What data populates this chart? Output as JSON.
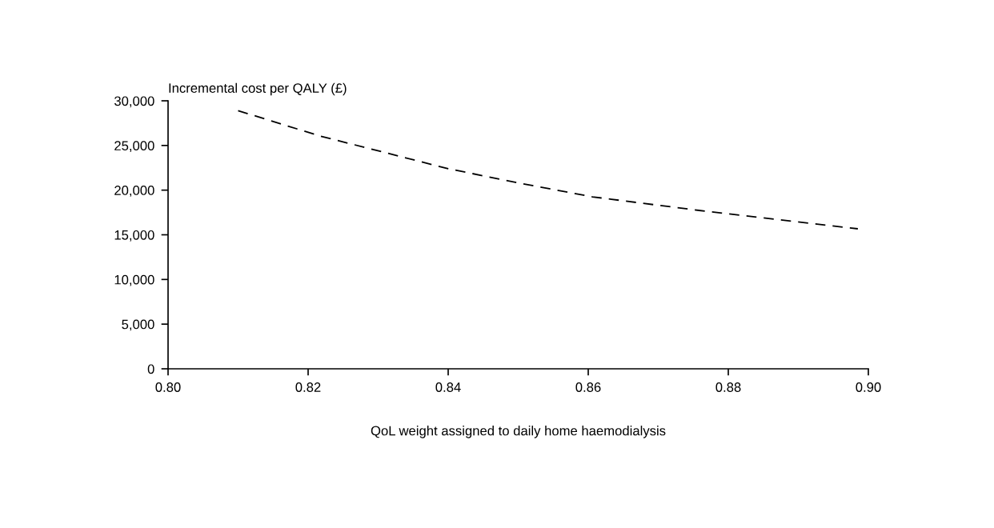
{
  "chart_data": {
    "type": "line",
    "xlabel": "QoL weight assigned to daily home haemodialysis",
    "ylabel": "Incremental cost per QALY (£)",
    "x": [
      0.81,
      0.8217,
      0.84,
      0.8502,
      0.8606,
      0.8758,
      0.8985
    ],
    "series": [
      {
        "color": "#000000",
        "values": [
          28900,
          26060,
          22400,
          20780,
          19250,
          17730,
          15670
        ]
      }
    ],
    "xlim": [
      0.8,
      0.9
    ],
    "xticks": [
      {
        "value": 0.8,
        "label": "0.80"
      },
      {
        "value": 0.82,
        "label": "0.82"
      },
      {
        "value": 0.84,
        "label": "0.84"
      },
      {
        "value": 0.86,
        "label": "0.86"
      },
      {
        "value": 0.88,
        "label": "0.88"
      },
      {
        "value": 0.9,
        "label": "0.90"
      }
    ],
    "ylim": [
      0,
      30000
    ],
    "yticks": [
      {
        "value": 0,
        "label": "0"
      },
      {
        "value": 5000,
        "label": "5,000"
      },
      {
        "value": 10000,
        "label": "10,000"
      },
      {
        "value": 15000,
        "label": "15,000"
      },
      {
        "value": 20000,
        "label": "20,000"
      },
      {
        "value": 25000,
        "label": "25,000"
      },
      {
        "value": 30000,
        "label": "30,000"
      }
    ],
    "grid": false,
    "line_style": "dashed",
    "marker": "none"
  }
}
